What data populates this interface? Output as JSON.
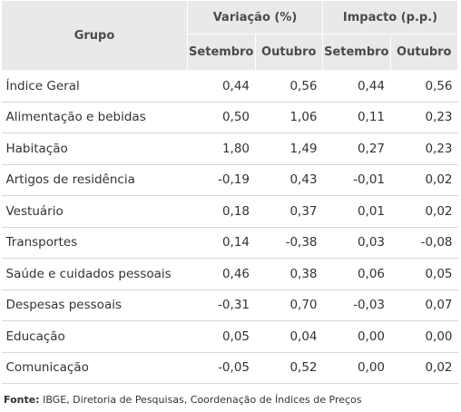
{
  "table": {
    "group_header": "Grupo",
    "variacao_header": "Variação (%)",
    "impacto_header": "Impacto (p.p.)",
    "sub_headers": [
      "Setembro",
      "Outubro",
      "Setembro",
      "Outubro"
    ],
    "rows": [
      {
        "name": "Índice Geral",
        "values": [
          "0,44",
          "0,56",
          "0,44",
          "0,56"
        ]
      },
      {
        "name": "Alimentação e bebidas",
        "values": [
          "0,50",
          "1,06",
          "0,11",
          "0,23"
        ]
      },
      {
        "name": "Habitação",
        "values": [
          "1,80",
          "1,49",
          "0,27",
          "0,23"
        ]
      },
      {
        "name": "Artigos de residência",
        "values": [
          "-0,19",
          "0,43",
          "-0,01",
          "0,02"
        ]
      },
      {
        "name": "Vestuário",
        "values": [
          "0,18",
          "0,37",
          "0,01",
          "0,02"
        ]
      },
      {
        "name": "Transportes",
        "values": [
          "0,14",
          "-0,38",
          "0,03",
          "-0,08"
        ]
      },
      {
        "name": "Saúde e cuidados pessoais",
        "values": [
          "0,46",
          "0,38",
          "0,06",
          "0,05"
        ]
      },
      {
        "name": "Despesas pessoais",
        "values": [
          "-0,31",
          "0,70",
          "-0,03",
          "0,07"
        ]
      },
      {
        "name": "Educação",
        "values": [
          "0,05",
          "0,04",
          "0,00",
          "0,00"
        ]
      },
      {
        "name": "Comunicação",
        "values": [
          "-0,05",
          "0,52",
          "0,00",
          "0,02"
        ]
      }
    ]
  },
  "source": {
    "label": "Fonte:",
    "text": " IBGE, Diretoria de Pesquisas, Coordenação de Índices de Preços"
  }
}
